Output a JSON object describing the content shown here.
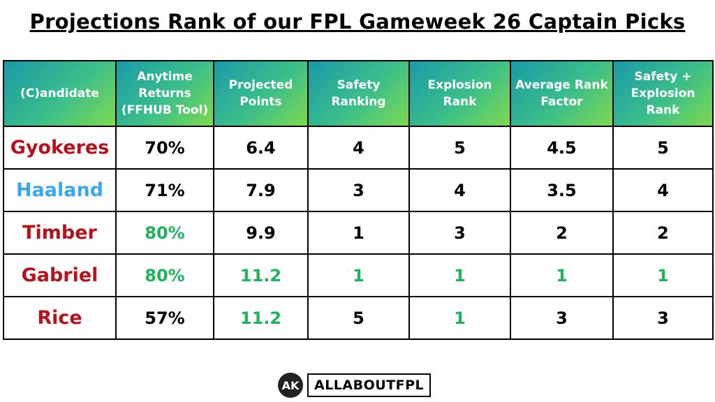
{
  "title": "Projections Rank of our FPL Gameweek 26 Captain Picks",
  "table": {
    "header": [
      "(C)andidate",
      "Anytime Returns (FFHUB Tool)",
      "Projected Points",
      "Safety Ranking",
      "Explosion Rank",
      "Average Rank Factor",
      "Safety + Explosion Rank"
    ],
    "rows": [
      [
        "Gyokeres",
        "70%",
        "6.4",
        "4",
        "5",
        "4.5",
        "5"
      ],
      [
        "Haaland",
        "71%",
        "7.9",
        "3",
        "4",
        "3.5",
        "4"
      ],
      [
        "Timber",
        "80%",
        "9.9",
        "1",
        "3",
        "2",
        "2"
      ],
      [
        "Gabriel",
        "80%",
        "11.2",
        "1",
        "1",
        "1",
        "1"
      ],
      [
        "Rice",
        "57%",
        "11.2",
        "5",
        "1",
        "3",
        "3"
      ]
    ]
  },
  "logo": {
    "badge": "AK",
    "brand": "ALLABOUTFPL"
  }
}
